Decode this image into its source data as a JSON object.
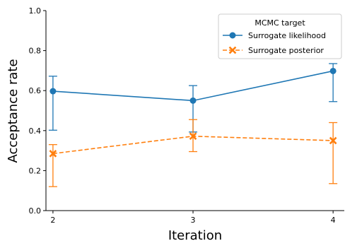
{
  "chart_data": {
    "type": "line",
    "x": [
      2,
      3,
      4
    ],
    "xlabel": "Iteration",
    "ylabel": "Acceptance rate",
    "xlim": [
      1.95,
      4.08
    ],
    "ylim": [
      0.0,
      1.0
    ],
    "x_ticks": [
      "2",
      "3",
      "4"
    ],
    "y_ticks": [
      "0.0",
      "0.2",
      "0.4",
      "0.6",
      "0.8",
      "1.0"
    ],
    "grid": false,
    "legend": {
      "title": "MCMC target",
      "placement": "top-right"
    },
    "series": [
      {
        "name": "Surrogate likelihood",
        "color": "#1f77b4",
        "linestyle": "solid",
        "marker": "circle",
        "values": [
          0.597,
          0.55,
          0.698
        ],
        "err_low": [
          0.402,
          0.393,
          0.545
        ],
        "err_high": [
          0.672,
          0.625,
          0.735
        ]
      },
      {
        "name": "Surrogate posterior",
        "color": "#ff7f0e",
        "linestyle": "dashed",
        "marker": "x",
        "values": [
          0.285,
          0.372,
          0.35
        ],
        "err_low": [
          0.12,
          0.295,
          0.135
        ],
        "err_high": [
          0.33,
          0.455,
          0.44
        ]
      }
    ]
  }
}
